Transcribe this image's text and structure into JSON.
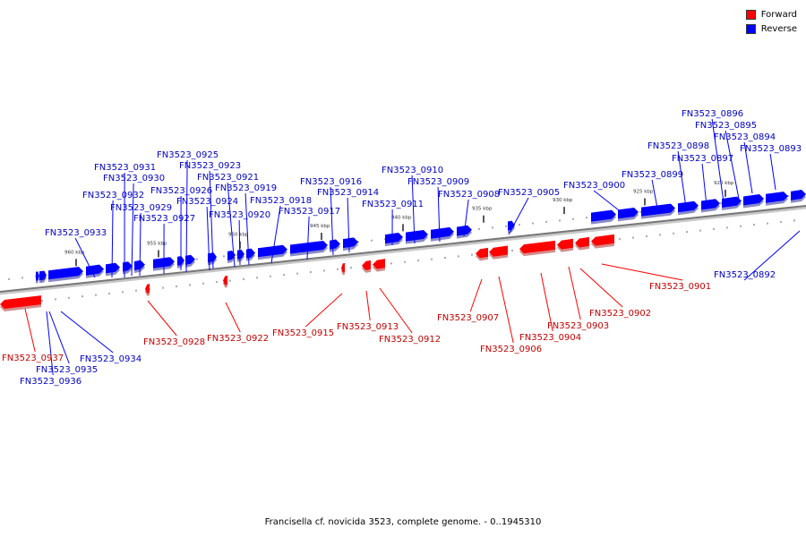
{
  "legend": {
    "forward_label": "Forward",
    "reverse_label": "Reverse",
    "forward_color": "#ff0000",
    "reverse_color": "#0000ff"
  },
  "caption": "Francisella cf. novicida 3523, complete genome. - 0..1945310",
  "ruler_labels": [
    "960 kbp",
    "955 kbp",
    "950 kbp",
    "945 kbp",
    "940 kbp",
    "935 kbp",
    "930 kbp",
    "925 kbp",
    "920 kbp"
  ],
  "genes": [
    {
      "id": "FN3523_0892",
      "strand": "reverse"
    },
    {
      "id": "FN3523_0893",
      "strand": "reverse"
    },
    {
      "id": "FN3523_0894",
      "strand": "reverse"
    },
    {
      "id": "FN3523_0895",
      "strand": "reverse"
    },
    {
      "id": "FN3523_0896",
      "strand": "reverse"
    },
    {
      "id": "FN3523_0897",
      "strand": "reverse"
    },
    {
      "id": "FN3523_0898",
      "strand": "reverse"
    },
    {
      "id": "FN3523_0899",
      "strand": "reverse"
    },
    {
      "id": "FN3523_0900",
      "strand": "reverse"
    },
    {
      "id": "FN3523_0901",
      "strand": "forward"
    },
    {
      "id": "FN3523_0902",
      "strand": "forward"
    },
    {
      "id": "FN3523_0903",
      "strand": "forward"
    },
    {
      "id": "FN3523_0904",
      "strand": "forward"
    },
    {
      "id": "FN3523_0905",
      "strand": "reverse"
    },
    {
      "id": "FN3523_0906",
      "strand": "forward"
    },
    {
      "id": "FN3523_0907",
      "strand": "forward"
    },
    {
      "id": "FN3523_0908",
      "strand": "reverse"
    },
    {
      "id": "FN3523_0909",
      "strand": "reverse"
    },
    {
      "id": "FN3523_0910",
      "strand": "reverse"
    },
    {
      "id": "FN3523_0911",
      "strand": "reverse"
    },
    {
      "id": "FN3523_0912",
      "strand": "forward"
    },
    {
      "id": "FN3523_0913",
      "strand": "forward"
    },
    {
      "id": "FN3523_0914",
      "strand": "reverse"
    },
    {
      "id": "FN3523_0915",
      "strand": "forward"
    },
    {
      "id": "FN3523_0916",
      "strand": "reverse"
    },
    {
      "id": "FN3523_0917",
      "strand": "reverse"
    },
    {
      "id": "FN3523_0918",
      "strand": "reverse"
    },
    {
      "id": "FN3523_0919",
      "strand": "reverse"
    },
    {
      "id": "FN3523_0920",
      "strand": "reverse"
    },
    {
      "id": "FN3523_0921",
      "strand": "reverse"
    },
    {
      "id": "FN3523_0922",
      "strand": "forward"
    },
    {
      "id": "FN3523_0923",
      "strand": "reverse"
    },
    {
      "id": "FN3523_0924",
      "strand": "reverse"
    },
    {
      "id": "FN3523_0925",
      "strand": "reverse"
    },
    {
      "id": "FN3523_0926",
      "strand": "reverse"
    },
    {
      "id": "FN3523_0927",
      "strand": "reverse"
    },
    {
      "id": "FN3523_0928",
      "strand": "forward"
    },
    {
      "id": "FN3523_0929",
      "strand": "reverse"
    },
    {
      "id": "FN3523_0930",
      "strand": "reverse"
    },
    {
      "id": "FN3523_0931",
      "strand": "reverse"
    },
    {
      "id": "FN3523_0932",
      "strand": "reverse"
    },
    {
      "id": "FN3523_0933",
      "strand": "reverse"
    },
    {
      "id": "FN3523_0934",
      "strand": "reverse"
    },
    {
      "id": "FN3523_0935",
      "strand": "reverse"
    },
    {
      "id": "FN3523_0936",
      "strand": "reverse"
    },
    {
      "id": "FN3523_0937",
      "strand": "forward"
    }
  ]
}
